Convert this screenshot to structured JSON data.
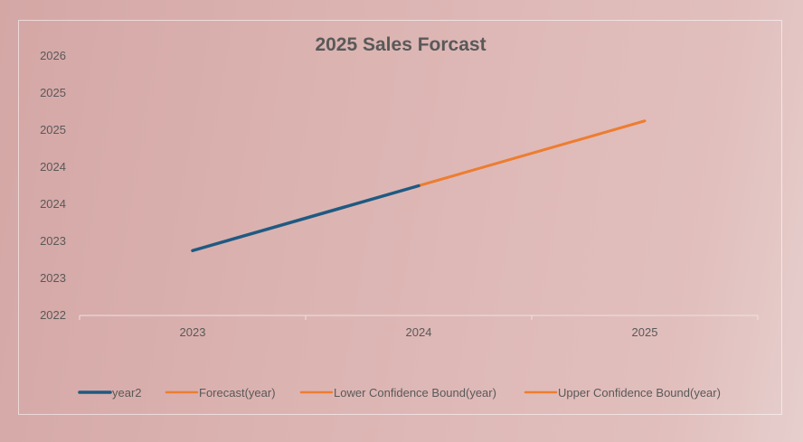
{
  "chart_data": {
    "type": "line",
    "title": "2025 Sales Forcast",
    "xlabel": "",
    "ylabel": "",
    "categories": [
      "2023",
      "2024",
      "2025"
    ],
    "yticks": [
      "2022",
      "2023",
      "2023",
      "2024",
      "2024",
      "2025",
      "2025",
      "2026"
    ],
    "ylim": [
      2022,
      2026
    ],
    "grid": false,
    "legend_position": "bottom",
    "series": [
      {
        "name": "year2",
        "color": "#1f5a82",
        "values": [
          2023,
          2024,
          null
        ]
      },
      {
        "name": "Forecast(year)",
        "color": "#ed7d31",
        "values": [
          null,
          2024,
          2025
        ]
      },
      {
        "name": "Lower Confidence Bound(year)",
        "color": "#ed7d31",
        "values": [
          null,
          2024,
          2025
        ]
      },
      {
        "name": "Upper Confidence Bound(year)",
        "color": "#ed7d31",
        "values": [
          null,
          2024,
          2025
        ]
      }
    ]
  }
}
